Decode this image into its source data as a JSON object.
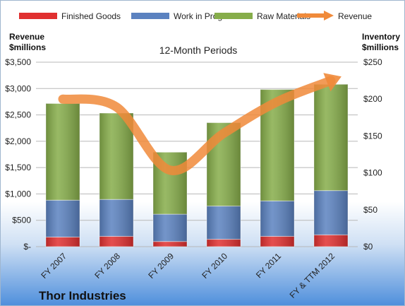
{
  "chart_data": {
    "type": "bar",
    "stacked": true,
    "categories": [
      "FY 2007",
      "FY 2008",
      "FY 2009",
      "FY 2010",
      "FY 2011",
      "FY & TTM 2012"
    ],
    "series": [
      {
        "name": "Finished Goods",
        "axis": "right",
        "values": [
          13,
          14,
          7,
          10,
          14,
          16
        ],
        "color": "#e03030"
      },
      {
        "name": "Work in Progress",
        "axis": "right",
        "values": [
          50,
          50,
          37,
          45,
          48,
          60
        ],
        "color": "#5b82c0"
      },
      {
        "name": "Raw Materials",
        "axis": "right",
        "values": [
          131,
          117,
          84,
          113,
          151,
          144
        ],
        "color": "#86ad4a"
      },
      {
        "name": "Revenue",
        "axis": "left",
        "type": "line",
        "values": [
          2800,
          2650,
          1450,
          2150,
          2750,
          3150
        ],
        "color": "#f08a3a"
      }
    ],
    "title": "12-Month Periods",
    "company": "Thor Industries",
    "ylabel_left": [
      "Revenue",
      "$millions"
    ],
    "ylabel_right": [
      "Inventory",
      "$millions"
    ],
    "ylim_left": [
      0,
      3500
    ],
    "ylim_right": [
      0,
      250
    ],
    "yticks_left": [
      "$-",
      "$500",
      "$1,000",
      "$1,500",
      "$2,000",
      "$2,500",
      "$3,000",
      "$3,500"
    ],
    "yticks_right": [
      "$0",
      "$50",
      "$100",
      "$150",
      "$200",
      "$250"
    ],
    "grid": true,
    "legend": "top"
  }
}
